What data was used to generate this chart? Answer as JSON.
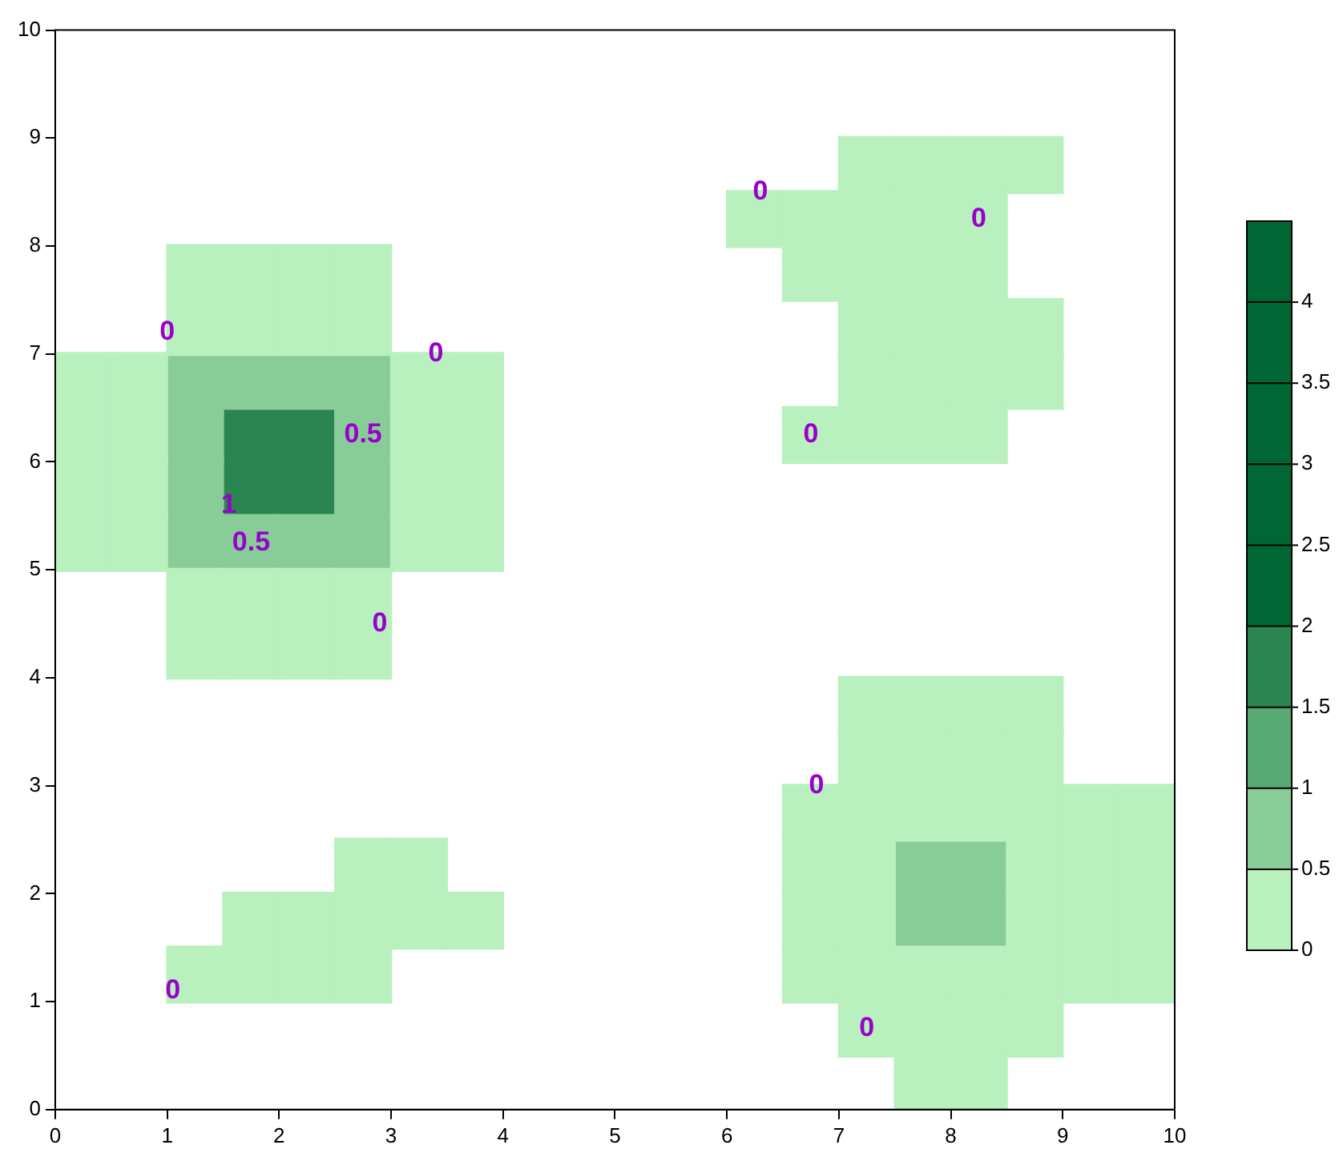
{
  "chart_data": {
    "type": "scatter",
    "marker": "square",
    "xlim": [
      0,
      10
    ],
    "xticks": [
      0,
      1,
      2,
      3,
      4,
      5,
      6,
      7,
      8,
      9,
      10
    ],
    "ylim": [
      0,
      10
    ],
    "yticks": [
      0,
      1,
      2,
      3,
      4,
      5,
      6,
      7,
      8,
      9,
      10
    ],
    "clim": [
      0,
      4.5
    ],
    "cticks": [
      0,
      0.5,
      1,
      1.5,
      2,
      2.5,
      3,
      3.5,
      4
    ],
    "colors": [
      "#b8f0be",
      "#88cc98",
      "#57a974",
      "#2a8550",
      "#006633",
      "#006633",
      "#006633",
      "#006633",
      "#006633"
    ],
    "series": [
      {
        "color": "#b8f0be",
        "x": [
          7.25,
          7.75,
          8.25,
          8.75,
          6.25,
          6.75,
          7.25,
          7.75,
          8.25,
          1.25,
          1.75,
          2.25,
          2.75,
          6.75,
          7.25,
          7.75,
          8.25,
          1.25,
          1.75,
          2.25,
          2.75,
          7.25,
          7.75,
          8.25,
          8.75,
          0.25,
          0.75,
          3.25,
          3.75,
          7.25,
          7.75,
          8.25,
          8.75,
          0.25,
          0.75,
          3.25,
          3.75,
          6.75,
          7.25,
          7.75,
          8.25,
          0.25,
          0.75,
          3.25,
          3.75,
          0.25,
          0.75,
          3.25,
          3.75,
          1.25,
          1.75,
          2.25,
          2.75,
          1.25,
          1.75,
          2.25,
          2.75,
          7.25,
          7.75,
          8.25,
          8.75,
          7.25,
          7.75,
          8.25,
          8.75,
          6.75,
          7.25,
          7.75,
          8.25,
          8.75,
          9.25,
          9.75,
          2.75,
          3.25,
          6.75,
          7.25,
          8.75,
          9.25,
          9.75,
          1.75,
          2.25,
          2.75,
          3.25,
          3.75,
          6.75,
          7.25,
          8.75,
          9.25,
          9.75,
          1.25,
          1.75,
          2.25,
          2.75,
          6.75,
          7.25,
          7.75,
          8.25,
          8.75,
          9.25,
          9.75,
          7.25,
          7.75,
          8.25,
          8.75,
          7.75,
          8.25
        ],
        "values": [
          8.75,
          8.75,
          8.75,
          8.75,
          8.25,
          8.25,
          8.25,
          8.25,
          8.25,
          7.75,
          7.75,
          7.75,
          7.75,
          7.75,
          7.75,
          7.75,
          7.75,
          7.25,
          7.25,
          7.25,
          7.25,
          7.25,
          7.25,
          7.25,
          7.25,
          6.75,
          6.75,
          6.75,
          6.75,
          6.75,
          6.75,
          6.75,
          6.75,
          6.25,
          6.25,
          6.25,
          6.25,
          6.25,
          6.25,
          6.25,
          6.25,
          5.75,
          5.75,
          5.75,
          5.75,
          5.25,
          5.25,
          5.25,
          5.25,
          4.75,
          4.75,
          4.75,
          4.75,
          4.25,
          4.25,
          4.25,
          4.25,
          3.75,
          3.75,
          3.75,
          3.75,
          3.25,
          3.25,
          3.25,
          3.25,
          2.75,
          2.75,
          2.75,
          2.75,
          2.75,
          2.75,
          2.75,
          2.25,
          2.25,
          2.25,
          2.25,
          2.25,
          2.25,
          2.25,
          1.75,
          1.75,
          1.75,
          1.75,
          1.75,
          1.75,
          1.75,
          1.75,
          1.75,
          1.75,
          1.25,
          1.25,
          1.25,
          1.25,
          1.25,
          1.25,
          1.25,
          1.25,
          1.25,
          1.25,
          1.25,
          0.75,
          0.75,
          0.75,
          0.75,
          0.25,
          0.25
        ]
      },
      {
        "color": "#88cc98",
        "x": [
          1.25,
          1.75,
          2.25,
          2.75,
          1.25,
          2.75,
          1.25,
          2.75,
          1.25,
          1.75,
          2.25,
          2.75,
          7.75,
          8.25,
          7.75,
          8.25
        ],
        "values": [
          6.75,
          6.75,
          6.75,
          6.75,
          6.25,
          6.25,
          5.75,
          5.75,
          5.25,
          5.25,
          5.25,
          5.25,
          2.25,
          2.25,
          1.75,
          1.75
        ]
      },
      {
        "color": "#2a8550",
        "x": [
          1.75,
          2.25,
          1.75,
          2.25
        ],
        "values": [
          6.25,
          6.25,
          5.75,
          5.75
        ]
      }
    ],
    "annotations": [
      {
        "text": "0",
        "x": 1.0,
        "y": 7.2
      },
      {
        "text": "0",
        "x": 3.4,
        "y": 7.0
      },
      {
        "text": "0",
        "x": 2.9,
        "y": 4.5
      },
      {
        "text": "0",
        "x": 6.3,
        "y": 8.5
      },
      {
        "text": "0",
        "x": 8.25,
        "y": 8.25
      },
      {
        "text": "0",
        "x": 6.75,
        "y": 6.25
      },
      {
        "text": "0",
        "x": 6.8,
        "y": 3.0
      },
      {
        "text": "0",
        "x": 7.25,
        "y": 0.75
      },
      {
        "text": "0",
        "x": 1.05,
        "y": 1.1
      },
      {
        "text": "0.5",
        "x": 2.75,
        "y": 6.25
      },
      {
        "text": "0.5",
        "x": 1.75,
        "y": 5.25
      },
      {
        "text": "1",
        "x": 1.55,
        "y": 5.6
      }
    ]
  }
}
